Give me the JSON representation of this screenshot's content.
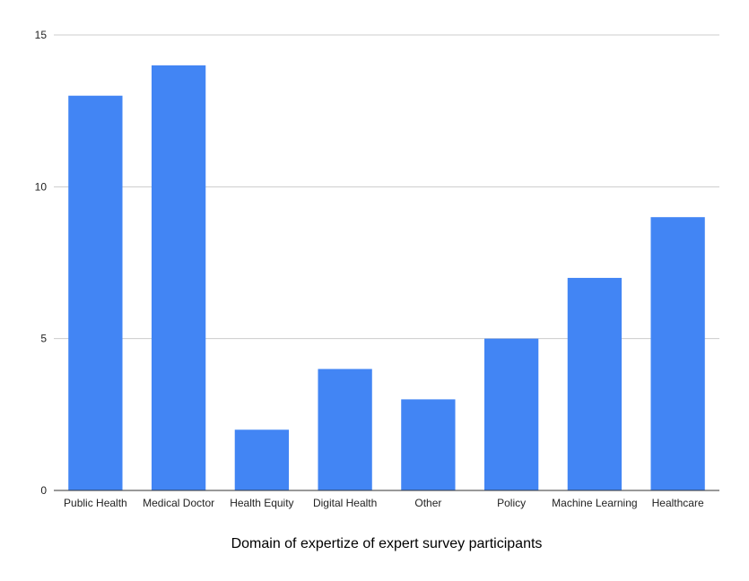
{
  "chart_data": {
    "type": "bar",
    "title": "",
    "xlabel": "Domain of expertize of expert survey participants",
    "ylabel": "",
    "categories": [
      "Public Health",
      "Medical Doctor",
      "Health Equity",
      "Digital Health",
      "Other",
      "Policy",
      "Machine Learning",
      "Healthcare"
    ],
    "values": [
      13,
      14,
      2,
      4,
      3,
      5,
      7,
      9
    ],
    "ylim": [
      0,
      15
    ],
    "yticks": [
      0,
      5,
      10,
      15
    ],
    "grid": true,
    "legend": "none",
    "bar_color": "#4285f4"
  }
}
